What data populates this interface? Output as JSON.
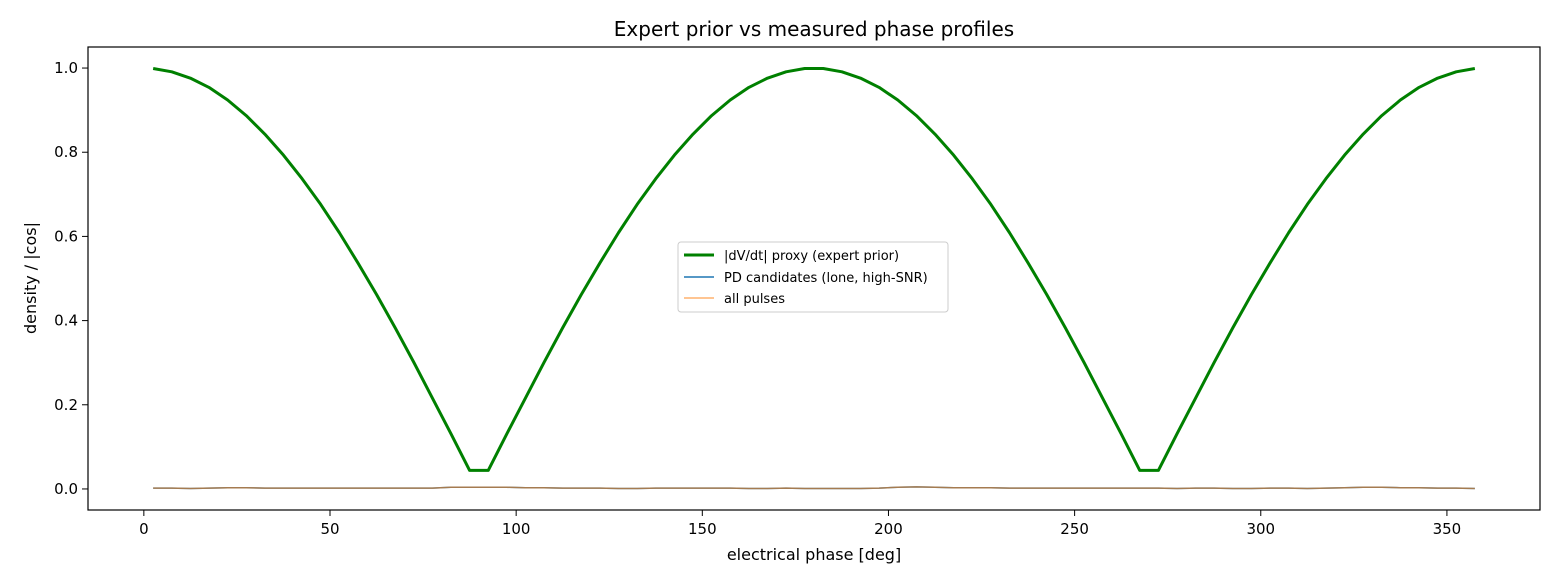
{
  "chart_data": {
    "type": "line",
    "title": "Expert prior vs measured phase profiles",
    "xlabel": "electrical phase [deg]",
    "ylabel": "density / |cos|",
    "xlim": [
      -15,
      375
    ],
    "ylim": [
      -0.05,
      1.05
    ],
    "xticks": [
      0,
      50,
      100,
      150,
      200,
      250,
      300,
      350
    ],
    "yticks": [
      0.0,
      0.2,
      0.4,
      0.6,
      0.8,
      1.0
    ],
    "xtick_labels": [
      "0",
      "50",
      "100",
      "150",
      "200",
      "250",
      "300",
      "350"
    ],
    "ytick_labels": [
      "0.0",
      "0.2",
      "0.4",
      "0.6",
      "0.8",
      "1.0"
    ],
    "grid": false,
    "legend_position": "center",
    "x": [
      2.5,
      7.5,
      12.5,
      17.5,
      22.5,
      27.5,
      32.5,
      37.5,
      42.5,
      47.5,
      52.5,
      57.5,
      62.5,
      67.5,
      72.5,
      77.5,
      82.5,
      87.5,
      92.5,
      97.5,
      102.5,
      107.5,
      112.5,
      117.5,
      122.5,
      127.5,
      132.5,
      137.5,
      142.5,
      147.5,
      152.5,
      157.5,
      162.5,
      167.5,
      172.5,
      177.5,
      182.5,
      187.5,
      192.5,
      197.5,
      202.5,
      207.5,
      212.5,
      217.5,
      222.5,
      227.5,
      232.5,
      237.5,
      242.5,
      247.5,
      252.5,
      257.5,
      262.5,
      267.5,
      272.5,
      277.5,
      282.5,
      287.5,
      292.5,
      297.5,
      302.5,
      307.5,
      312.5,
      317.5,
      322.5,
      327.5,
      332.5,
      337.5,
      342.5,
      347.5,
      352.5,
      357.5
    ],
    "series": [
      {
        "name": "|dV/dt| proxy (expert prior)",
        "color": "#008000",
        "values": [
          0.999,
          0.991,
          0.976,
          0.954,
          0.924,
          0.887,
          0.843,
          0.793,
          0.737,
          0.676,
          0.609,
          0.537,
          0.462,
          0.383,
          0.301,
          0.216,
          0.131,
          0.044,
          0.044,
          0.131,
          0.216,
          0.301,
          0.383,
          0.462,
          0.537,
          0.609,
          0.676,
          0.737,
          0.793,
          0.843,
          0.887,
          0.924,
          0.954,
          0.976,
          0.991,
          0.999,
          0.999,
          0.991,
          0.976,
          0.954,
          0.924,
          0.887,
          0.843,
          0.793,
          0.737,
          0.676,
          0.609,
          0.537,
          0.462,
          0.383,
          0.301,
          0.216,
          0.131,
          0.044,
          0.044,
          0.131,
          0.216,
          0.301,
          0.383,
          0.462,
          0.537,
          0.609,
          0.676,
          0.737,
          0.793,
          0.843,
          0.887,
          0.924,
          0.954,
          0.976,
          0.991,
          0.999
        ]
      },
      {
        "name": "PD candidates (lone, high-SNR)",
        "color": "#1f77b4",
        "values": [
          0.002,
          0.002,
          0.001,
          0.002,
          0.003,
          0.003,
          0.002,
          0.002,
          0.002,
          0.002,
          0.002,
          0.002,
          0.002,
          0.002,
          0.002,
          0.002,
          0.004,
          0.004,
          0.004,
          0.004,
          0.003,
          0.003,
          0.002,
          0.002,
          0.002,
          0.001,
          0.001,
          0.002,
          0.002,
          0.002,
          0.002,
          0.002,
          0.001,
          0.001,
          0.002,
          0.001,
          0.001,
          0.001,
          0.001,
          0.002,
          0.004,
          0.005,
          0.004,
          0.003,
          0.003,
          0.003,
          0.002,
          0.002,
          0.002,
          0.002,
          0.002,
          0.002,
          0.002,
          0.002,
          0.002,
          0.001,
          0.002,
          0.002,
          0.001,
          0.001,
          0.002,
          0.002,
          0.001,
          0.002,
          0.003,
          0.004,
          0.004,
          0.003,
          0.003,
          0.002,
          0.002,
          0.001
        ]
      },
      {
        "name": "all pulses",
        "color": "#ff7f0e",
        "values": [
          0.002,
          0.002,
          0.001,
          0.002,
          0.003,
          0.003,
          0.002,
          0.002,
          0.002,
          0.002,
          0.002,
          0.002,
          0.002,
          0.002,
          0.002,
          0.002,
          0.004,
          0.004,
          0.004,
          0.004,
          0.003,
          0.003,
          0.002,
          0.002,
          0.002,
          0.001,
          0.001,
          0.002,
          0.002,
          0.002,
          0.002,
          0.002,
          0.001,
          0.001,
          0.002,
          0.001,
          0.001,
          0.001,
          0.001,
          0.002,
          0.004,
          0.005,
          0.004,
          0.003,
          0.003,
          0.003,
          0.002,
          0.002,
          0.002,
          0.002,
          0.002,
          0.002,
          0.002,
          0.002,
          0.002,
          0.001,
          0.002,
          0.002,
          0.001,
          0.001,
          0.002,
          0.002,
          0.001,
          0.002,
          0.003,
          0.004,
          0.004,
          0.003,
          0.003,
          0.002,
          0.002,
          0.001
        ]
      }
    ]
  }
}
